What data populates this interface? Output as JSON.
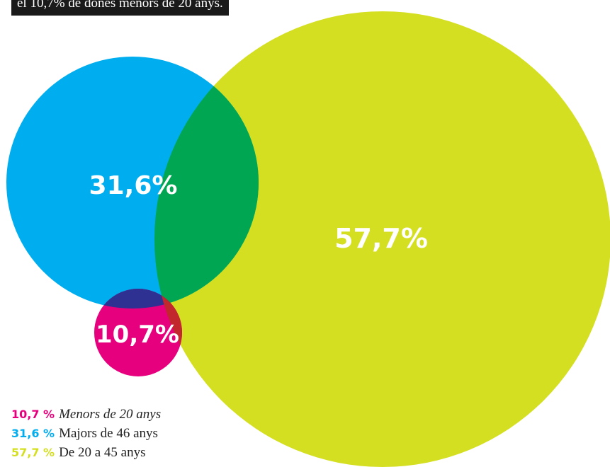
{
  "caption": "el 10,7% de dones menors de 20 anys.",
  "chart_data": {
    "type": "bubble",
    "series": [
      {
        "name": "Menors de 20 anys",
        "value": 10.7,
        "label": "10,7%",
        "legend_pct": "10,7 %",
        "color": "#e6007e",
        "italic": true
      },
      {
        "name": "Majors de 46 anys",
        "value": 31.6,
        "label": "31,6%",
        "legend_pct": "31,6 %",
        "color": "#00aeef",
        "italic": false
      },
      {
        "name": "De 20 a 45 anys",
        "value": 57.7,
        "label": "57,7%",
        "legend_pct": "57,7 %",
        "color": "#d4df21",
        "italic": false
      }
    ],
    "overlap_colors": {
      "blue_yellow": "#00a651",
      "blue_magenta": "#2e3192",
      "yellow_magenta": "#c1272d"
    }
  }
}
